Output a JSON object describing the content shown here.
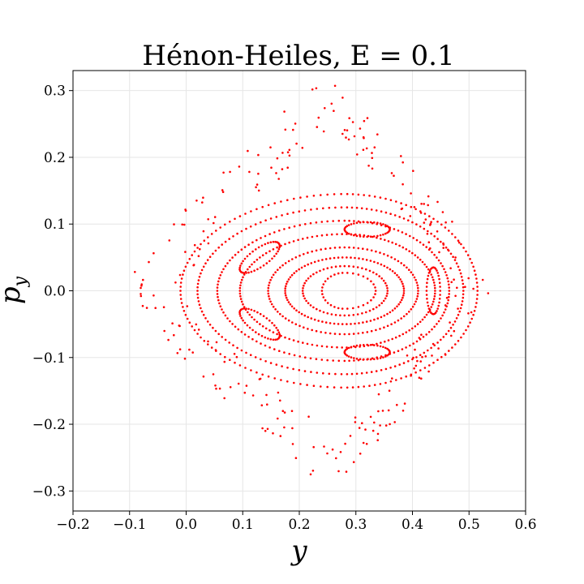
{
  "chart_data": {
    "type": "scatter",
    "title": "Hénon-Heiles, E = 0.1",
    "xlabel": "y",
    "ylabel": "p",
    "ylabel_subscript": "y",
    "xlim": [
      -0.2,
      0.6
    ],
    "ylim": [
      -0.33,
      0.33
    ],
    "xticks": [
      -0.2,
      -0.1,
      0.0,
      0.1,
      0.2,
      0.3,
      0.4,
      0.5,
      0.6
    ],
    "xtick_labels": [
      "−0.2",
      "−0.1",
      "0.0",
      "0.1",
      "0.2",
      "0.3",
      "0.4",
      "0.5",
      "0.6"
    ],
    "yticks": [
      -0.3,
      -0.2,
      -0.1,
      0.0,
      0.1,
      0.2,
      0.3
    ],
    "ytick_labels": [
      "−0.3",
      "−0.2",
      "−0.1",
      "0.0",
      "0.1",
      "0.2",
      "0.3"
    ],
    "grid": true,
    "legend": "none",
    "marker_color": "#ff0000",
    "series": [
      {
        "kind": "island-chain",
        "center": [
          0.28,
          0.0
        ],
        "orbits": [
          {
            "ry": 0.027,
            "x_left": 0.24,
            "x_right": 0.335,
            "points": 34
          },
          {
            "ry": 0.037,
            "x_left": 0.206,
            "x_right": 0.356,
            "points": 60
          },
          {
            "ry": 0.05,
            "x_left": 0.175,
            "x_right": 0.385,
            "points": 90
          },
          {
            "ry": 0.065,
            "x_left": 0.145,
            "x_right": 0.41,
            "points": 100
          },
          {
            "ry": 0.085,
            "x_left": 0.095,
            "x_right": 0.44,
            "points": 130
          },
          {
            "ry": 0.105,
            "x_left": 0.055,
            "x_right": 0.465,
            "points": 140
          },
          {
            "ry": 0.125,
            "x_left": 0.02,
            "x_right": 0.49,
            "points": 150
          },
          {
            "ry": 0.145,
            "x_left": -0.01,
            "x_right": 0.515,
            "points": 150
          }
        ],
        "islands": [
          {
            "center": [
              0.32,
              0.092
            ],
            "rx": 0.04,
            "ry": 0.011,
            "points": 40
          },
          {
            "center": [
              0.32,
              -0.092
            ],
            "rx": 0.04,
            "ry": 0.011,
            "points": 40
          },
          {
            "center": [
              0.13,
              0.05
            ],
            "rx": 0.04,
            "ry": 0.014,
            "angle": 30,
            "points": 40
          },
          {
            "center": [
              0.13,
              -0.05
            ],
            "rx": 0.04,
            "ry": 0.014,
            "angle": -30,
            "points": 40
          },
          {
            "center": [
              0.437,
              0.0
            ],
            "rx": 0.012,
            "ry": 0.035,
            "points": 36
          }
        ],
        "chaotic_layer": {
          "points": 260,
          "top": [
            0.255,
            0.328
          ],
          "bottom": [
            0.26,
            -0.303
          ],
          "left": [
            -0.125,
            0.0
          ],
          "right": [
            0.545,
            0.01
          ]
        }
      }
    ]
  }
}
